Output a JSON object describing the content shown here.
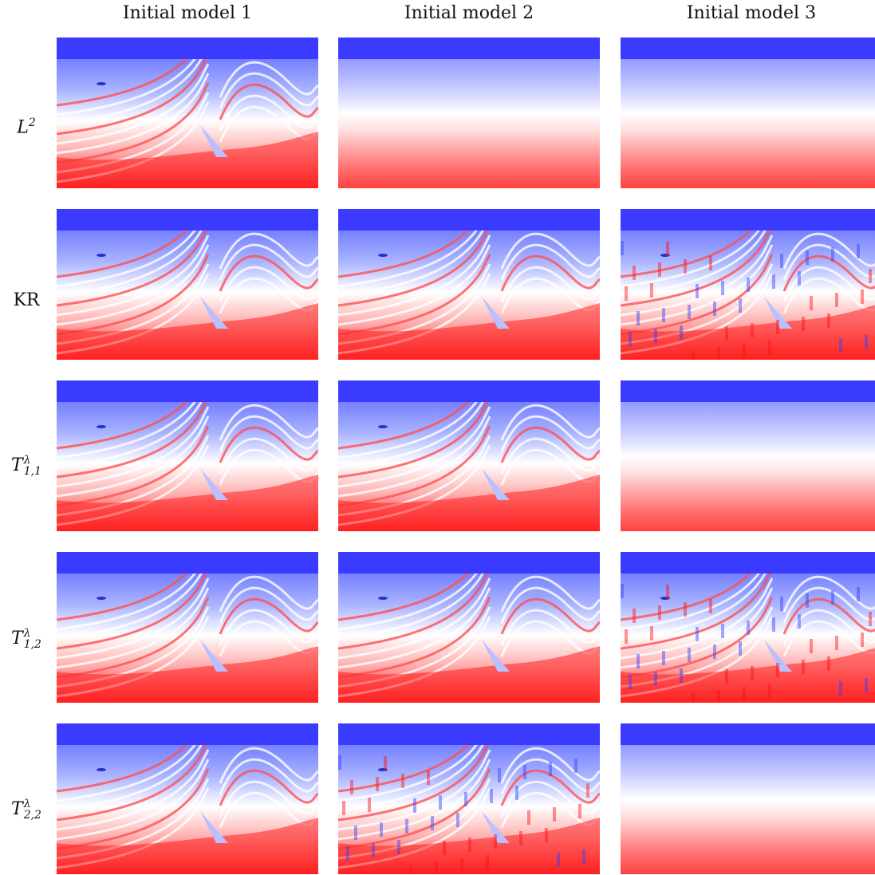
{
  "columns": [
    {
      "title": "Initial model 1"
    },
    {
      "title": "Initial model 2"
    },
    {
      "title": "Initial model 3"
    }
  ],
  "rows": [
    {
      "label_base": "L",
      "label_sup": "2",
      "label_sub": ""
    },
    {
      "label_base": "KR",
      "label_sup": "",
      "label_sub": ""
    },
    {
      "label_base": "T",
      "label_sup": "λ",
      "label_sub": "1,1"
    },
    {
      "label_base": "T",
      "label_sup": "λ",
      "label_sub": "1,2"
    },
    {
      "label_base": "T",
      "label_sup": "λ",
      "label_sub": "2,2"
    }
  ],
  "panels": [
    [
      "structured",
      "smooth",
      "smooth"
    ],
    [
      "structured",
      "structured",
      "noisy"
    ],
    [
      "structured",
      "structured",
      "smooth"
    ],
    [
      "structured",
      "structured",
      "structured-noisy"
    ],
    [
      "structured",
      "structured-noisy",
      "smooth"
    ]
  ],
  "colors": {
    "water": "#3b3bff",
    "deep_blue": "#4a55ff",
    "light": "#ffffff",
    "red": "#ff2020"
  }
}
